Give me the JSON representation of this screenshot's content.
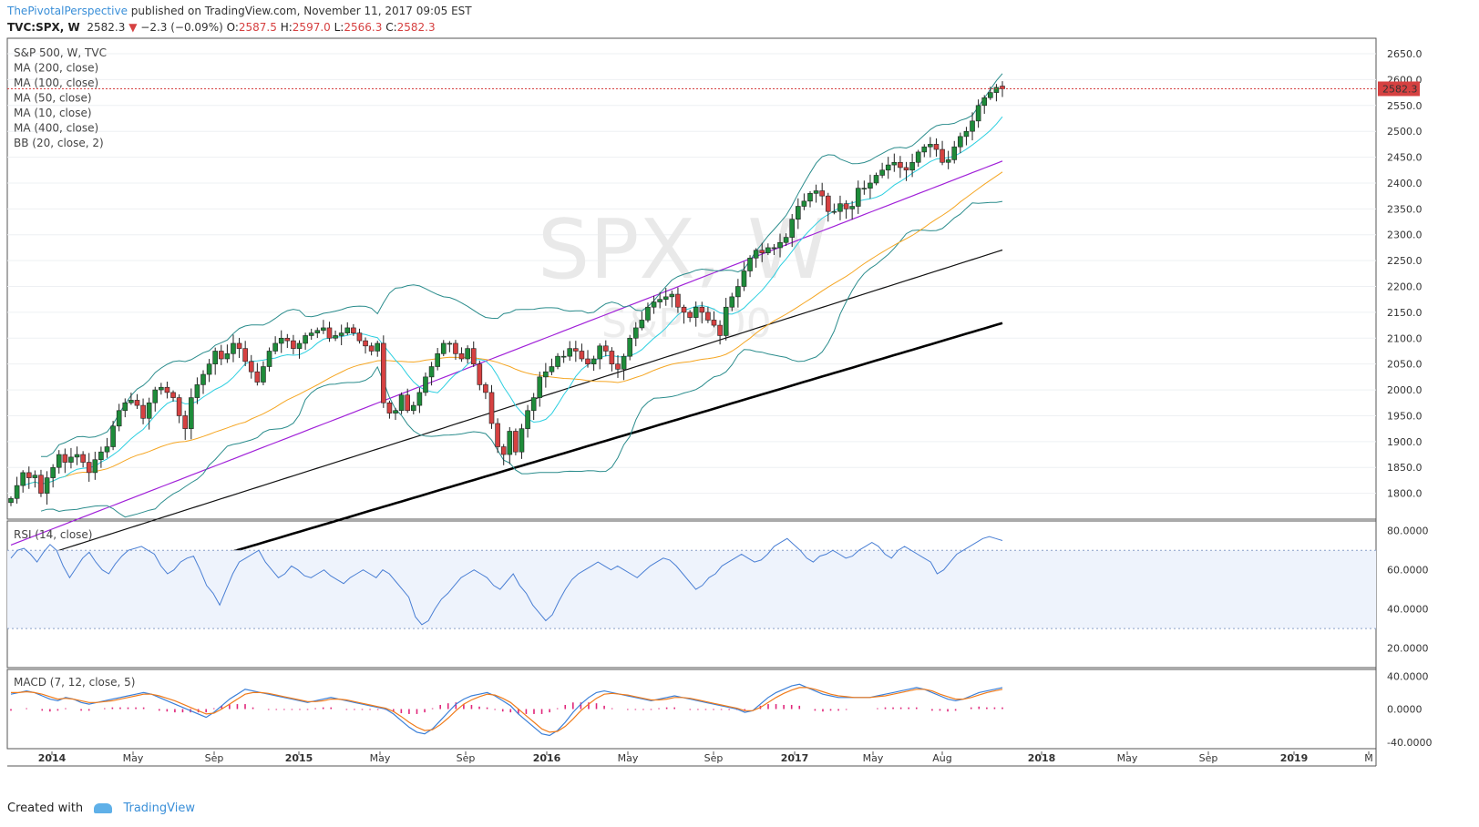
{
  "header": {
    "author": "ThePivotalPerspective",
    "published": "published on TradingView.com, November 11, 2017 09:05 EST",
    "symbol": "TVC:SPX, W",
    "last": "2582.3",
    "change": "−2.3 (−0.09%)",
    "o_label": "O:",
    "o_value": "2587.5",
    "h_label": "H:",
    "h_value": "2597.0",
    "l_label": "L:",
    "l_value": "2566.3",
    "c_label": "C:",
    "c_value": "2582.3"
  },
  "legend": [
    "S&P 500, W, TVC",
    "MA (200, close)",
    "MA (100, close)",
    "MA (50, close)",
    "MA (10, close)",
    "MA (400, close)",
    "BB (20, close, 2)"
  ],
  "watermark": {
    "symbol": "SPX, W",
    "name": "S&P 500"
  },
  "footer": {
    "created": "Created with",
    "brand": "TradingView"
  },
  "colors": {
    "up": "#1e8c3a",
    "down": "#d64141",
    "ma10": "#2ccfe0",
    "ma50": "#f5a623",
    "ma100": "#a020d8",
    "ma200": "#111111",
    "ma400": "#000000",
    "bb": "#2a8c8c",
    "rsi": "#4a7fd4",
    "macd": "#3a7fd8",
    "signal": "#f07b1a",
    "hist": "#e0267a",
    "price_tag": "#d64141"
  },
  "chart_data": [
    {
      "type": "candlestick",
      "title": "S&P 500, W, TVC",
      "ylim": [
        1750,
        2680
      ],
      "yticks": [
        1800,
        1850,
        1900,
        1950,
        2000,
        2050,
        2100,
        2150,
        2200,
        2250,
        2300,
        2350,
        2400,
        2450,
        2500,
        2550,
        2600,
        2650
      ],
      "last_price_label": "2582.3",
      "last_price": 2582.3,
      "x_labels": [
        "2014",
        "May",
        "Sep",
        "2015",
        "May",
        "Sep",
        "2016",
        "May",
        "Sep",
        "2017",
        "May",
        "Aug",
        "2018",
        "May",
        "Sep",
        "2019",
        "M"
      ],
      "close_path": [
        1790,
        1815,
        1840,
        1830,
        1835,
        1800,
        1830,
        1850,
        1875,
        1860,
        1870,
        1875,
        1860,
        1840,
        1865,
        1880,
        1890,
        1930,
        1960,
        1975,
        1980,
        1970,
        1945,
        1975,
        2000,
        2005,
        1995,
        1985,
        1950,
        1925,
        1985,
        2010,
        2030,
        2050,
        2075,
        2060,
        2070,
        2090,
        2080,
        2055,
        2035,
        2015,
        2045,
        2075,
        2090,
        2100,
        2095,
        2080,
        2090,
        2105,
        2110,
        2115,
        2120,
        2100,
        2105,
        2110,
        2120,
        2110,
        2095,
        2085,
        2075,
        2090,
        1975,
        1955,
        1960,
        1990,
        1960,
        1970,
        1995,
        2025,
        2045,
        2070,
        2090,
        2090,
        2070,
        2060,
        2080,
        2050,
        2010,
        1995,
        1935,
        1890,
        1875,
        1920,
        1880,
        1925,
        1960,
        1985,
        2025,
        2035,
        2045,
        2065,
        2065,
        2080,
        2075,
        2060,
        2050,
        2060,
        2085,
        2075,
        2050,
        2040,
        2065,
        2100,
        2120,
        2135,
        2160,
        2170,
        2175,
        2180,
        2185,
        2160,
        2150,
        2140,
        2160,
        2150,
        2135,
        2125,
        2105,
        2160,
        2180,
        2200,
        2230,
        2255,
        2270,
        2265,
        2275,
        2275,
        2285,
        2295,
        2330,
        2355,
        2365,
        2380,
        2385,
        2375,
        2345,
        2345,
        2360,
        2350,
        2355,
        2390,
        2390,
        2400,
        2415,
        2425,
        2435,
        2440,
        2430,
        2425,
        2440,
        2460,
        2470,
        2475,
        2465,
        2440,
        2445,
        2470,
        2490,
        2500,
        2520,
        2550,
        2565,
        2575,
        2585,
        2582.3
      ],
      "last_bar": {
        "open": 2587.5,
        "high": 2597.0,
        "low": 2566.3,
        "close": 2582.3
      },
      "overlays": [
        "MA 200",
        "MA 100",
        "MA 50",
        "MA 10",
        "MA 400",
        "BB 20,2"
      ]
    },
    {
      "type": "line",
      "title": "RSI (14, close)",
      "ylim": [
        10,
        85
      ],
      "yticks": [
        20,
        40,
        60,
        80
      ],
      "band": [
        30,
        70
      ],
      "values": [
        66,
        70,
        71,
        68,
        64,
        69,
        73,
        70,
        62,
        56,
        61,
        66,
        69,
        64,
        60,
        58,
        63,
        67,
        70,
        71,
        72,
        70,
        68,
        62,
        58,
        60,
        64,
        66,
        67,
        60,
        52,
        48,
        42,
        50,
        58,
        64,
        66,
        68,
        70,
        64,
        60,
        56,
        58,
        62,
        60,
        57,
        56,
        58,
        60,
        57,
        55,
        53,
        56,
        58,
        60,
        58,
        56,
        60,
        58,
        54,
        50,
        46,
        36,
        32,
        34,
        40,
        45,
        48,
        52,
        56,
        58,
        60,
        58,
        56,
        52,
        50,
        54,
        58,
        52,
        48,
        42,
        38,
        34,
        37,
        44,
        50,
        55,
        58,
        60,
        62,
        64,
        62,
        60,
        62,
        60,
        58,
        56,
        59,
        62,
        64,
        66,
        65,
        62,
        58,
        54,
        50,
        52,
        56,
        58,
        62,
        64,
        66,
        68,
        66,
        64,
        65,
        68,
        72,
        74,
        76,
        73,
        70,
        66,
        64,
        67,
        68,
        70,
        68,
        66,
        67,
        70,
        72,
        74,
        72,
        68,
        66,
        70,
        72,
        70,
        68,
        66,
        64,
        58,
        60,
        64,
        68,
        70,
        72,
        74,
        76,
        77,
        76,
        75
      ]
    },
    {
      "type": "line",
      "title": "MACD (7, 12, close, 5)",
      "ylim": [
        -48,
        48
      ],
      "yticks": [
        40,
        0,
        -40
      ],
      "tick_labels": [
        "40.0000",
        "0.0000",
        "-40.0000"
      ],
      "series": [
        {
          "name": "MACD",
          "values": [
            18,
            20,
            22,
            20,
            16,
            12,
            10,
            14,
            12,
            8,
            6,
            8,
            10,
            12,
            14,
            16,
            18,
            20,
            18,
            14,
            10,
            6,
            2,
            -2,
            -6,
            -10,
            -4,
            4,
            12,
            18,
            24,
            22,
            20,
            18,
            16,
            14,
            12,
            10,
            8,
            10,
            12,
            14,
            12,
            10,
            8,
            6,
            4,
            2,
            0,
            -6,
            -14,
            -22,
            -28,
            -30,
            -24,
            -14,
            -4,
            6,
            12,
            16,
            18,
            20,
            16,
            10,
            4,
            -6,
            -14,
            -22,
            -30,
            -32,
            -26,
            -16,
            -4,
            6,
            14,
            20,
            22,
            20,
            18,
            16,
            14,
            12,
            10,
            12,
            14,
            16,
            14,
            12,
            10,
            8,
            6,
            4,
            2,
            0,
            -4,
            -2,
            6,
            14,
            20,
            24,
            28,
            30,
            26,
            22,
            18,
            16,
            14,
            14,
            14,
            14,
            14,
            16,
            18,
            20,
            22,
            24,
            26,
            24,
            20,
            16,
            12,
            10,
            12,
            16,
            20,
            22,
            24,
            26
          ]
        },
        {
          "name": "Signal",
          "values": [
            20,
            20,
            21,
            20,
            18,
            15,
            12,
            13,
            12,
            10,
            8,
            8,
            9,
            10,
            12,
            14,
            16,
            18,
            18,
            16,
            13,
            10,
            6,
            2,
            -2,
            -6,
            -5,
            0,
            6,
            12,
            18,
            20,
            20,
            19,
            17,
            15,
            13,
            11,
            9,
            9,
            10,
            12,
            12,
            11,
            9,
            7,
            5,
            3,
            1,
            -3,
            -9,
            -16,
            -22,
            -26,
            -25,
            -19,
            -11,
            -2,
            6,
            11,
            15,
            18,
            17,
            13,
            8,
            0,
            -8,
            -16,
            -24,
            -28,
            -27,
            -21,
            -12,
            -2,
            6,
            13,
            18,
            19,
            18,
            17,
            15,
            13,
            11,
            11,
            12,
            14,
            14,
            13,
            11,
            9,
            7,
            5,
            3,
            1,
            -2,
            -2,
            2,
            8,
            14,
            19,
            23,
            26,
            26,
            24,
            21,
            18,
            16,
            15,
            14,
            14,
            14,
            15,
            16,
            18,
            20,
            22,
            24,
            24,
            22,
            18,
            15,
            12,
            12,
            14,
            17,
            20,
            22,
            24
          ]
        }
      ],
      "histogram": [
        -2,
        0,
        1,
        0,
        -2,
        -3,
        -2,
        1,
        0,
        -2,
        -2,
        0,
        1,
        2,
        2,
        2,
        2,
        2,
        0,
        -2,
        -3,
        -4,
        -4,
        -4,
        -4,
        -4,
        1,
        4,
        6,
        6,
        6,
        2,
        0,
        -1,
        -1,
        -1,
        -1,
        -1,
        -1,
        1,
        2,
        2,
        0,
        -1,
        -1,
        -1,
        -1,
        -1,
        -1,
        -3,
        -5,
        -6,
        -6,
        -4,
        1,
        5,
        7,
        8,
        6,
        5,
        3,
        2,
        -1,
        -3,
        -4,
        -6,
        -6,
        -6,
        -6,
        -4,
        1,
        5,
        8,
        8,
        8,
        7,
        4,
        1,
        0,
        -1,
        -1,
        -1,
        -1,
        1,
        2,
        2,
        0,
        -1,
        -1,
        -1,
        -1,
        -1,
        -1,
        -1,
        -2,
        0,
        4,
        6,
        6,
        5,
        5,
        4,
        0,
        -2,
        -3,
        -2,
        -2,
        -1,
        0,
        0,
        0,
        1,
        2,
        2,
        2,
        2,
        2,
        0,
        -2,
        -2,
        -3,
        -2,
        0,
        2,
        3,
        2,
        2,
        2
      ]
    }
  ]
}
